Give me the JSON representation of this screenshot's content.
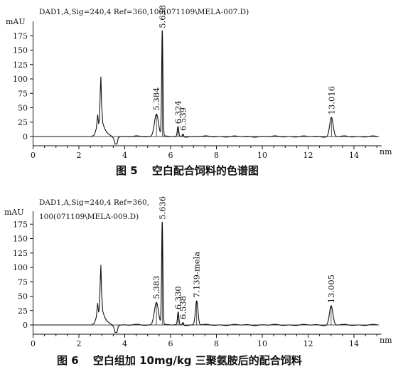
{
  "chart_data": [
    {
      "type": "line",
      "caption": "图 5　 空白配合饲料的色谱图",
      "header_lines": [
        "DAD1,A,Sig=240,4 Ref=360,100(071109\\MELA-007.D)"
      ],
      "ylabel": "mAU",
      "xlabel": "nm",
      "x_ticks": [
        0,
        2,
        4,
        6,
        8,
        10,
        12,
        14
      ],
      "y_ticks": [
        0,
        25,
        50,
        75,
        100,
        125,
        150,
        175
      ],
      "xlim": [
        0,
        15
      ],
      "ylim": [
        -12,
        190
      ],
      "peaks": [
        {
          "label": "5.384",
          "rt": 5.384,
          "height": 40
        },
        {
          "label": "5.638",
          "rt": 5.638,
          "height": 183
        },
        {
          "label": "6.324",
          "rt": 6.324,
          "height": 17
        },
        {
          "label": "6.539",
          "rt": 6.539,
          "height": 5
        },
        {
          "label": "13.016",
          "rt": 13.016,
          "height": 33
        }
      ]
    },
    {
      "type": "line",
      "caption": "图 6　 空白组加 10mg/kg 三聚氨胺后的配合饲料",
      "header_lines": [
        "DAD1,A,Sig=240,4 Ref=360,",
        "100(071109\\MELA-009.D)"
      ],
      "ylabel": "mAU",
      "xlabel": "nm",
      "x_ticks": [
        0,
        2,
        4,
        6,
        8,
        10,
        12,
        14
      ],
      "y_ticks": [
        0,
        25,
        50,
        75,
        100,
        125,
        150,
        175
      ],
      "xlim": [
        0,
        15
      ],
      "ylim": [
        -12,
        190
      ],
      "peaks": [
        {
          "label": "5.383",
          "rt": 5.383,
          "height": 40
        },
        {
          "label": "5.636",
          "rt": 5.636,
          "height": 178
        },
        {
          "label": "6.330",
          "rt": 6.33,
          "height": 22
        },
        {
          "label": "6.538",
          "rt": 6.538,
          "height": 5
        },
        {
          "label": "7.139-mela",
          "rt": 7.139,
          "height": 42
        },
        {
          "label": "13.005",
          "rt": 13.005,
          "height": 33
        }
      ]
    }
  ]
}
